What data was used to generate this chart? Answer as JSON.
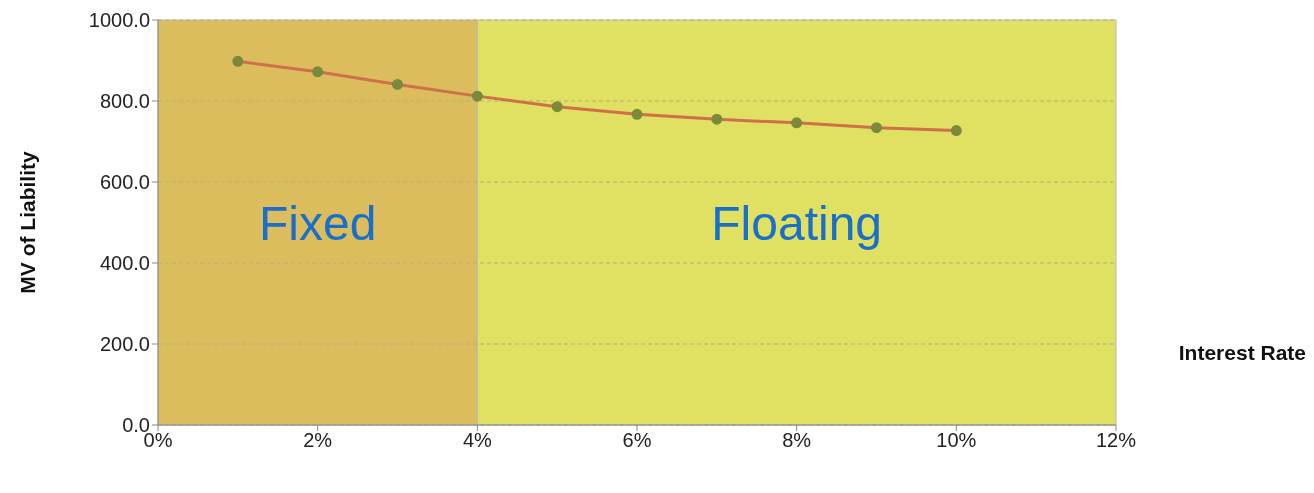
{
  "chart_data": {
    "type": "line",
    "xlabel": "Interest Rate",
    "ylabel": "MV of Liability",
    "x": [
      1,
      2,
      3,
      4,
      5,
      6,
      7,
      8,
      9,
      10
    ],
    "series": [
      {
        "color": "#d0704a",
        "values": [
          898,
          872,
          841,
          812,
          786,
          767,
          755,
          746,
          734,
          727
        ]
      }
    ],
    "xlim": [
      0,
      12
    ],
    "xticks": [
      {
        "value": 0,
        "label": "0%"
      },
      {
        "value": 2,
        "label": "2%"
      },
      {
        "value": 4,
        "label": "4%"
      },
      {
        "value": 6,
        "label": "6%"
      },
      {
        "value": 8,
        "label": "8%"
      },
      {
        "value": 10,
        "label": "10%"
      },
      {
        "value": 12,
        "label": "12%"
      }
    ],
    "ylim": [
      0,
      1000
    ],
    "yticks": [
      {
        "value": 0,
        "label": "0.0"
      },
      {
        "value": 200,
        "label": "200.0"
      },
      {
        "value": 400,
        "label": "400.0"
      },
      {
        "value": 600,
        "label": "600.0"
      },
      {
        "value": 800,
        "label": "800.0"
      },
      {
        "value": 1000,
        "label": "1000.0"
      }
    ],
    "bands": [
      {
        "axis": "x",
        "from": 0,
        "to": 4,
        "label": "Fixed",
        "color": "#dcbd5e"
      },
      {
        "axis": "x",
        "from": 4,
        "to": 12,
        "label": "Floating",
        "color": "#e0e062"
      }
    ],
    "grid": "y",
    "marker": "circle"
  }
}
